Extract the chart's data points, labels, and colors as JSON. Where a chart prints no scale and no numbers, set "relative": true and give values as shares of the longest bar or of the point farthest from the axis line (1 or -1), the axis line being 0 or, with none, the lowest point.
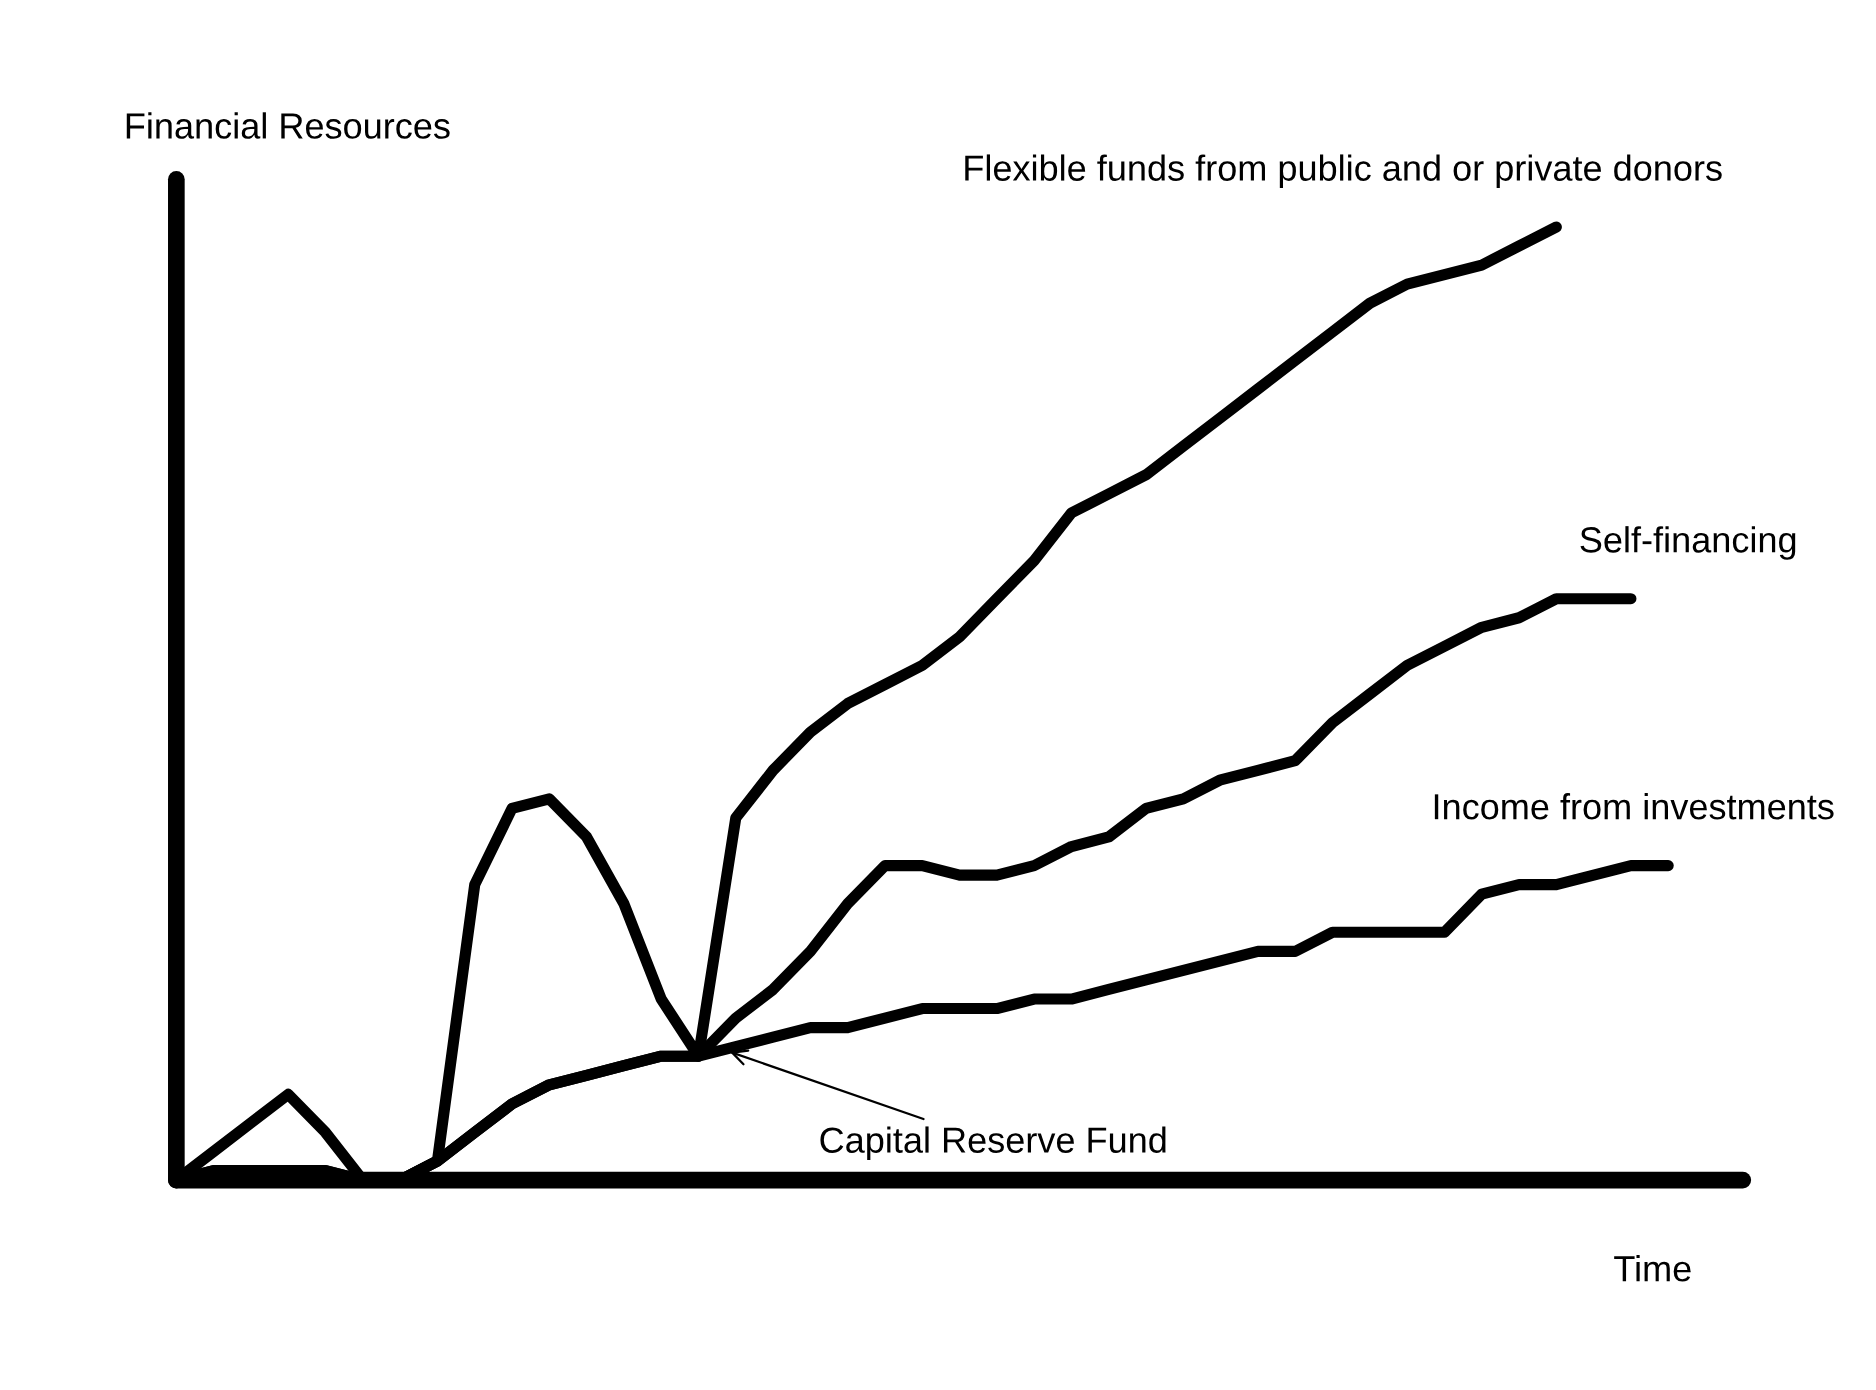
{
  "chart_data": {
    "type": "line",
    "relative": true,
    "xlabel": "Time",
    "ylabel": "Financial Resources",
    "legend": false,
    "marker": "none",
    "line_style": "solid",
    "categories": [
      null,
      null,
      null,
      null,
      null,
      null,
      null,
      null,
      null,
      null,
      null,
      null,
      null,
      null,
      null,
      null,
      null,
      null,
      null,
      null,
      null,
      null,
      null,
      null,
      null,
      null,
      null,
      null,
      null,
      null,
      null,
      null,
      null,
      null,
      null,
      null,
      null,
      null,
      null,
      null,
      null
    ],
    "series": [
      {
        "name": "Flexible funds from public and or private donors",
        "color": "#000000",
        "values": [
          0,
          0.03,
          0.06,
          0.09,
          0.05,
          0.0,
          0,
          0.02,
          0.31,
          0.39,
          0.4,
          0.36,
          0.29,
          0.19,
          0.13,
          0.38,
          0.43,
          0.47,
          0.5,
          0.52,
          0.54,
          0.57,
          0.61,
          0.65,
          0.7,
          0.72,
          0.74,
          0.77,
          0.8,
          0.83,
          0.86,
          0.89,
          0.92,
          0.94,
          0.95,
          0.96,
          0.98,
          1.0,
          null,
          null,
          null
        ]
      },
      {
        "name": "Self-financing",
        "color": "#000000",
        "values": [
          0,
          0.01,
          0.01,
          0.01,
          0.01,
          0,
          0,
          0.02,
          0.05,
          0.08,
          0.1,
          0.11,
          0.12,
          0.13,
          0.13,
          0.17,
          0.2,
          0.24,
          0.29,
          0.33,
          0.33,
          0.32,
          0.32,
          0.33,
          0.35,
          0.36,
          0.39,
          0.4,
          0.42,
          0.43,
          0.44,
          0.48,
          0.51,
          0.54,
          0.56,
          0.58,
          0.59,
          0.61,
          0.61,
          0.61,
          null
        ]
      },
      {
        "name": "Income from investments",
        "color": "#000000",
        "values": [
          0,
          0.01,
          0.01,
          0.01,
          0.01,
          0,
          0,
          0.02,
          0.05,
          0.08,
          0.1,
          0.11,
          0.12,
          0.13,
          0.13,
          0.14,
          0.15,
          0.16,
          0.16,
          0.17,
          0.18,
          0.18,
          0.18,
          0.19,
          0.19,
          0.2,
          0.21,
          0.22,
          0.23,
          0.24,
          0.24,
          0.26,
          0.26,
          0.26,
          0.26,
          0.3,
          0.31,
          0.31,
          0.32,
          0.33,
          0.33
        ]
      }
    ],
    "annotations": [
      "Capital Reserve Fund"
    ]
  }
}
